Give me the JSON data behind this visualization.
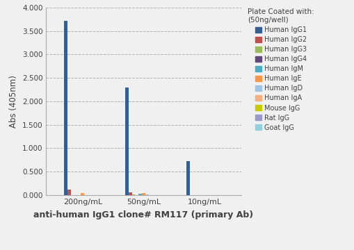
{
  "groups": [
    "200ng/mL",
    "50ng/mL",
    "10ng/mL"
  ],
  "series": [
    {
      "label": "Human IgG1",
      "color": "#365F91",
      "values": [
        3.72,
        2.3,
        0.73
      ]
    },
    {
      "label": "Human IgG2",
      "color": "#C0504D",
      "values": [
        0.12,
        0.05,
        0.0
      ]
    },
    {
      "label": "Human IgG3",
      "color": "#9BBB59",
      "values": [
        0.0,
        0.015,
        0.0
      ]
    },
    {
      "label": "Human IgG4",
      "color": "#60497A",
      "values": [
        0.0,
        0.0,
        0.0
      ]
    },
    {
      "label": "Human IgM",
      "color": "#4BACC6",
      "values": [
        0.0,
        0.03,
        0.0
      ]
    },
    {
      "label": "Human IgE",
      "color": "#F79646",
      "values": [
        0.04,
        0.04,
        0.0
      ]
    },
    {
      "label": "Human IgD",
      "color": "#9DC3E6",
      "values": [
        0.0,
        0.015,
        0.0
      ]
    },
    {
      "label": "Human IgA",
      "color": "#F4B183",
      "values": [
        0.0,
        0.0,
        0.0
      ]
    },
    {
      "label": "Mouse IgG",
      "color": "#C9C900",
      "values": [
        0.0,
        0.0,
        0.0
      ]
    },
    {
      "label": "Rat IgG",
      "color": "#9999CC",
      "values": [
        0.0,
        0.0,
        0.0
      ]
    },
    {
      "label": "Goat IgG",
      "color": "#92D0E0",
      "values": [
        0.0,
        0.0,
        0.0
      ]
    }
  ],
  "xlabel": "anti-human IgG1 clone# RM117 (primary Ab)",
  "ylabel": "Abs (405nm)",
  "legend_title": "Plate Coated with:\n(50ng/well)",
  "ylim": [
    0.0,
    4.0
  ],
  "yticks": [
    0.0,
    0.5,
    1.0,
    1.5,
    2.0,
    2.5,
    3.0,
    3.5,
    4.0
  ],
  "ytick_labels": [
    "0.000",
    "0.500",
    "1.000",
    "1.500",
    "2.000",
    "2.500",
    "3.000",
    "3.500",
    "4.000"
  ],
  "background_color": "#F0F0F0",
  "bar_width": 0.055,
  "group_centers": [
    1,
    2,
    3
  ],
  "xlim": [
    0.4,
    3.6
  ]
}
